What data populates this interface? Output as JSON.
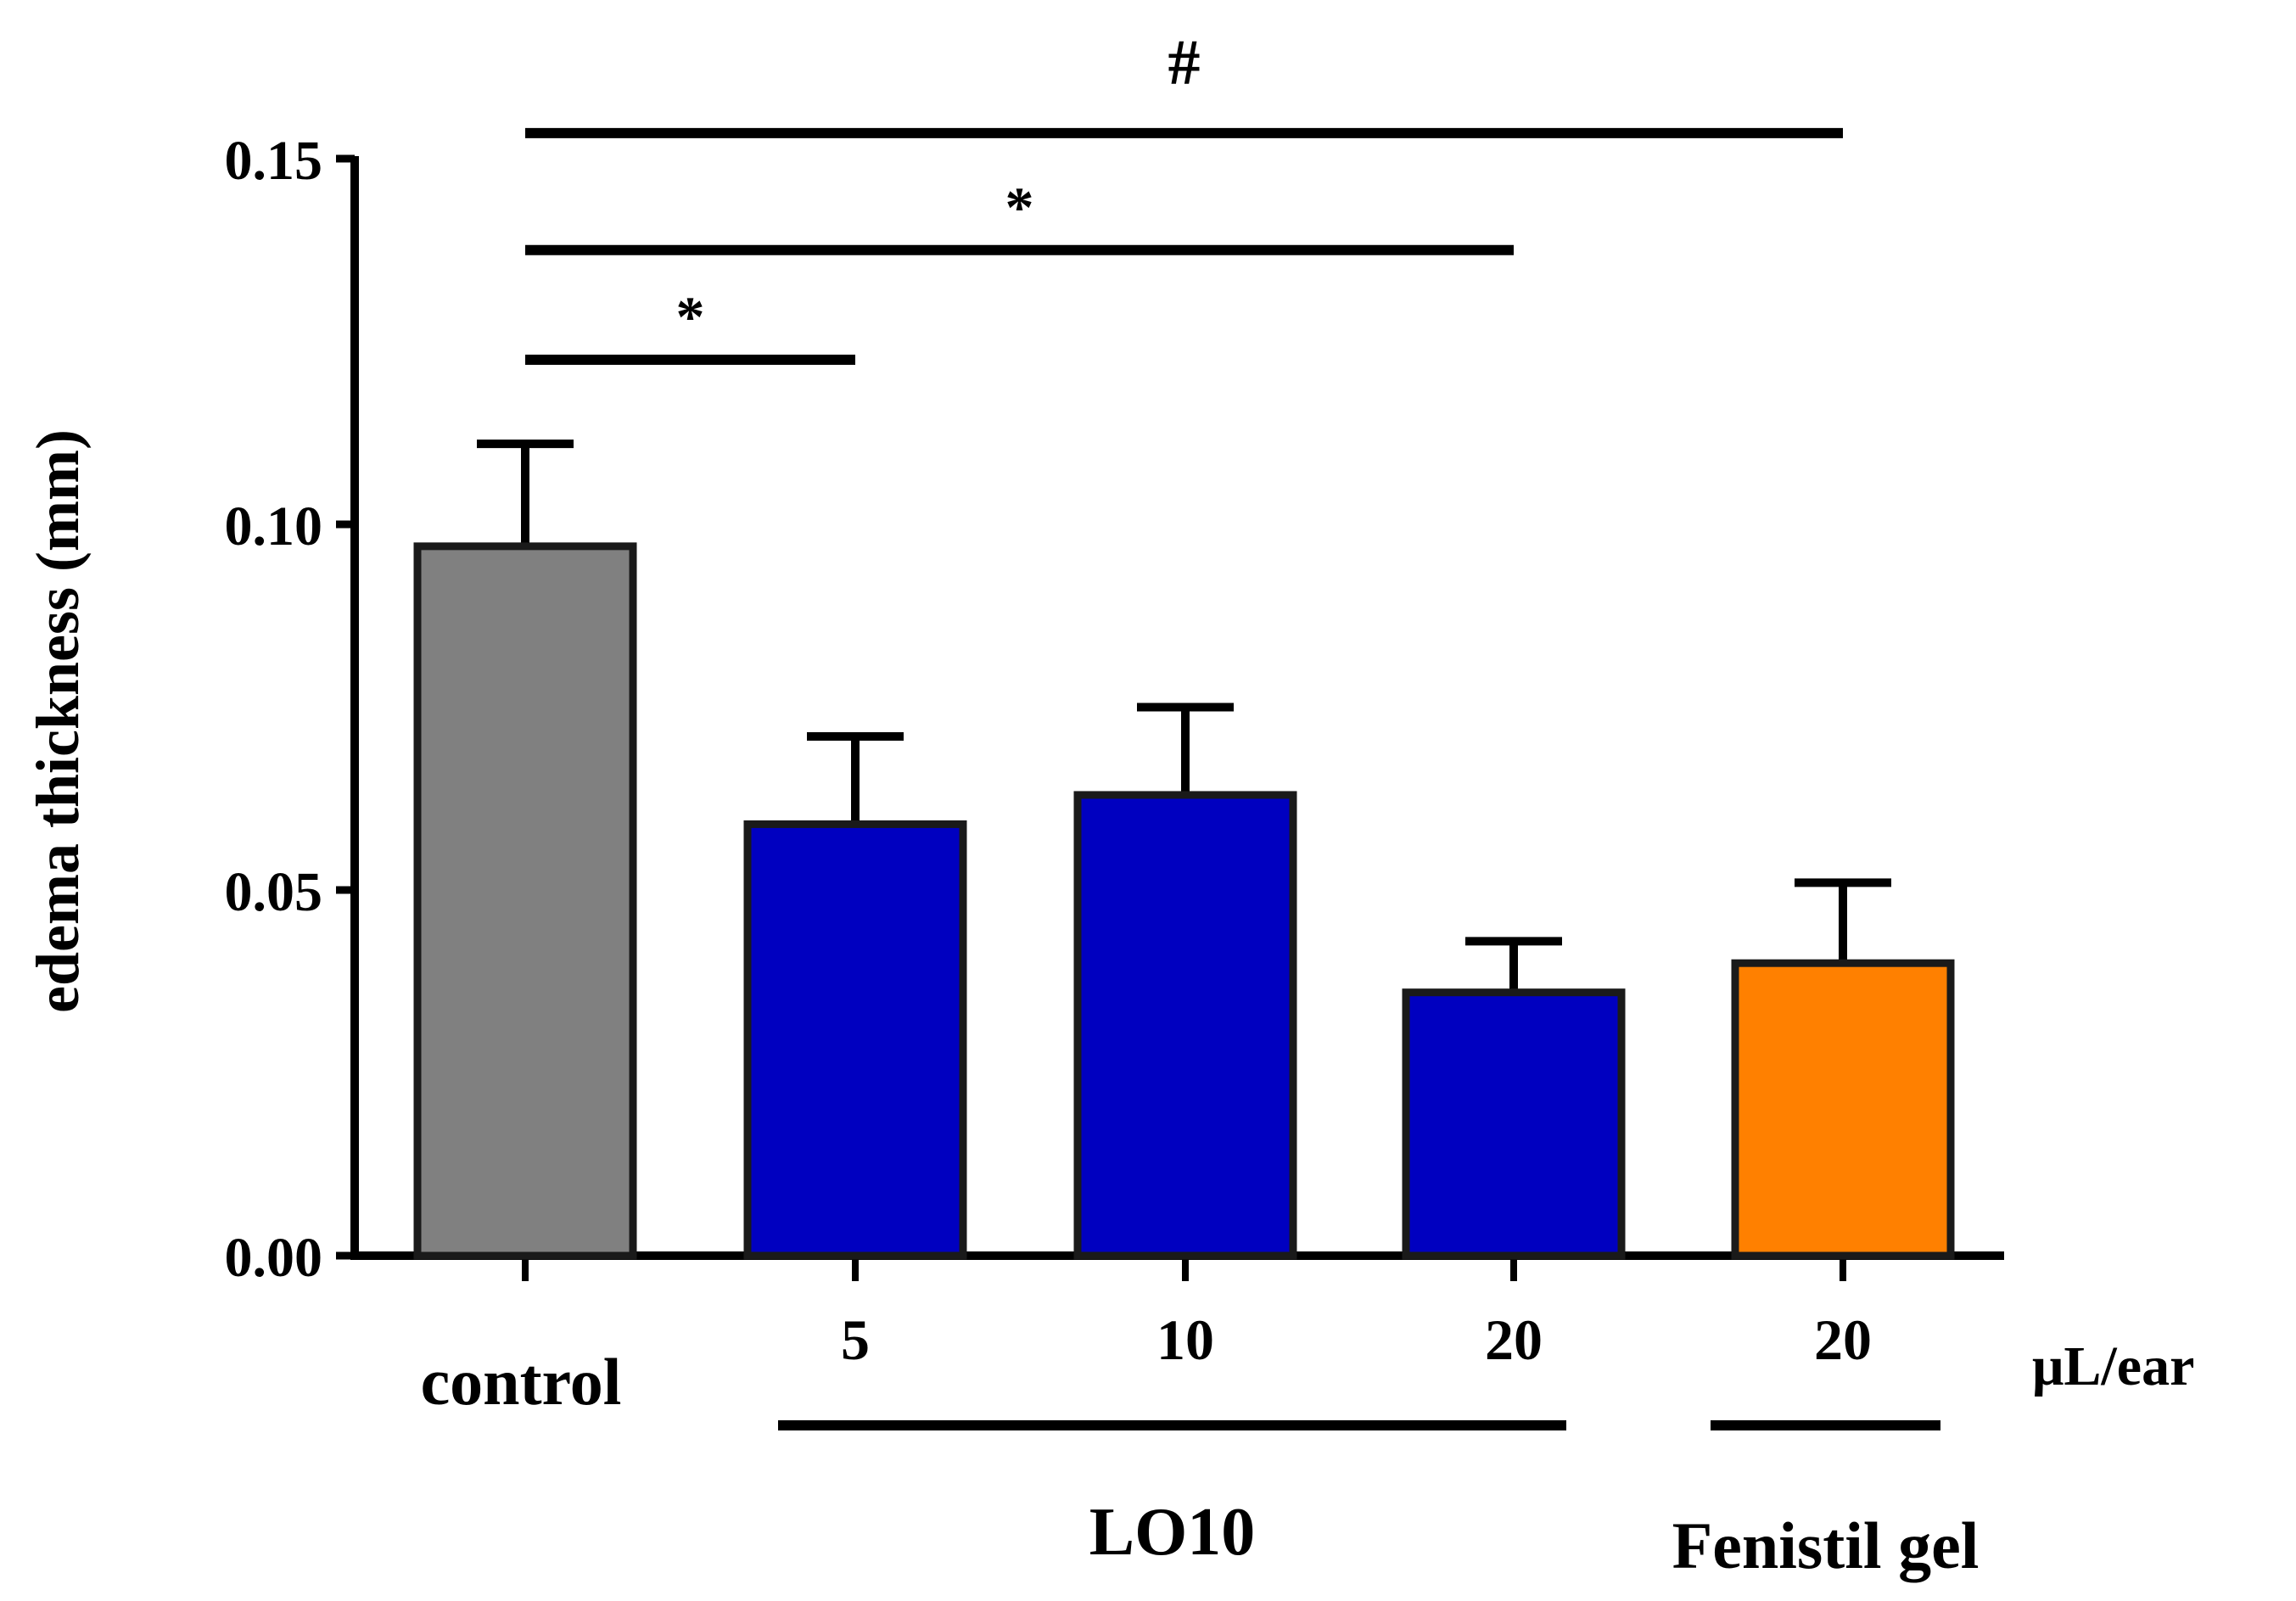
{
  "chart_data": {
    "type": "bar",
    "ylabel": "edema thickness (mm)",
    "ylim": [
      0,
      0.15
    ],
    "yticks": [
      {
        "value": 0.0,
        "label": "0.00"
      },
      {
        "value": 0.05,
        "label": "0.05"
      },
      {
        "value": 0.1,
        "label": "0.10"
      },
      {
        "value": 0.15,
        "label": "0.15"
      }
    ],
    "grid": false,
    "categories": [
      "control",
      "5",
      "10",
      "20",
      "20"
    ],
    "unit_label": "μL/ear",
    "values": [
      0.097,
      0.059,
      0.063,
      0.036,
      0.04
    ],
    "errors": [
      0.014,
      0.012,
      0.012,
      0.007,
      0.011
    ],
    "colors": [
      "#808080",
      "#0000c0",
      "#0000c0",
      "#0000c0",
      "#ff8000"
    ],
    "groups": [
      {
        "label": "LO10",
        "from": 1,
        "to": 3
      },
      {
        "label": "Fenistil gel",
        "from": 4,
        "to": 4
      }
    ],
    "significance": [
      {
        "label": "#",
        "from": 0,
        "to": 4,
        "y": 0.1535
      },
      {
        "label": "*",
        "from": 0,
        "to": 3,
        "y": 0.1375
      },
      {
        "label": "*",
        "from": 0,
        "to": 1,
        "y": 0.1225
      }
    ]
  }
}
